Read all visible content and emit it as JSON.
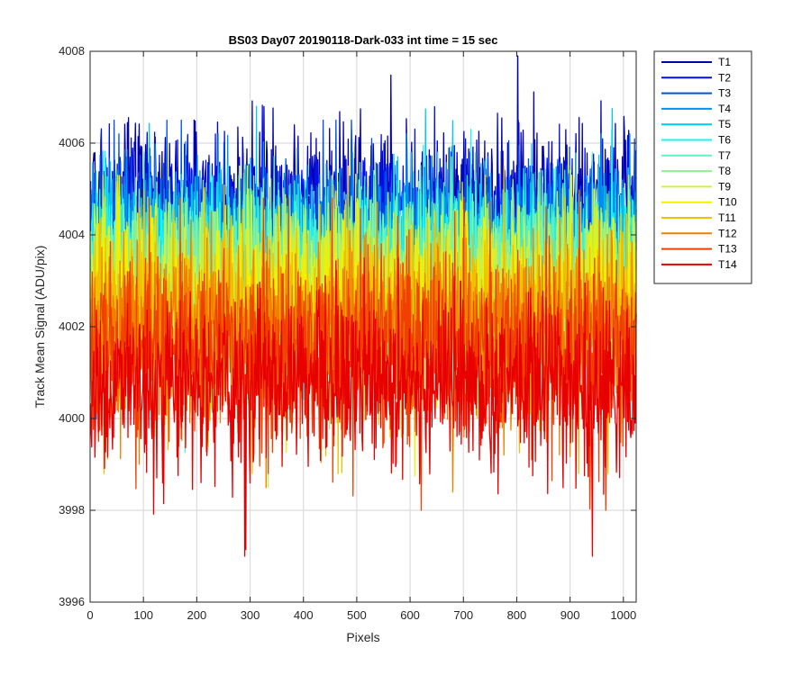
{
  "chart_data": {
    "type": "line",
    "title": "BS03 Day07 20190118-Dark-033 int time = 15 sec",
    "xlabel": "Pixels",
    "ylabel": "Track Mean Signal (ADU/pix)",
    "xlim": [
      0,
      1024
    ],
    "ylim": [
      3996,
      4008
    ],
    "xticks": [
      0,
      100,
      200,
      300,
      400,
      500,
      600,
      700,
      800,
      900,
      1000
    ],
    "yticks": [
      3996,
      3998,
      4000,
      4002,
      4004,
      4006,
      4008
    ],
    "grid": true,
    "legend_position": "outside-top-right",
    "num_points": 1024,
    "x_start": 1,
    "series": [
      {
        "name": "T1",
        "color": "#0000b3",
        "mean": 4004.6,
        "spread": 0.85,
        "min": 4000.0,
        "max": 4007.9
      },
      {
        "name": "T2",
        "color": "#0010e6",
        "mean": 4004.3,
        "spread": 0.8,
        "min": 3999.8,
        "max": 4007.5
      },
      {
        "name": "T3",
        "color": "#0050e8",
        "mean": 4004.0,
        "spread": 0.8,
        "min": 3999.8,
        "max": 4006.5
      },
      {
        "name": "T4",
        "color": "#0090f0",
        "mean": 4003.8,
        "spread": 0.8,
        "min": 3999.6,
        "max": 4006.2
      },
      {
        "name": "T5",
        "color": "#00c8f0",
        "mean": 4003.6,
        "spread": 0.8,
        "min": 3999.5,
        "max": 4006.8
      },
      {
        "name": "T6",
        "color": "#20f0f0",
        "mean": 4003.4,
        "spread": 0.85,
        "min": 3999.4,
        "max": 4006.3
      },
      {
        "name": "T7",
        "color": "#60f0c0",
        "mean": 4003.2,
        "spread": 0.85,
        "min": 3998.8,
        "max": 4005.8
      },
      {
        "name": "T8",
        "color": "#90f090",
        "mean": 4003.0,
        "spread": 0.9,
        "min": 3997.6,
        "max": 4005.7
      },
      {
        "name": "T9",
        "color": "#d0f040",
        "mean": 4002.8,
        "spread": 0.9,
        "min": 3998.5,
        "max": 4005.5
      },
      {
        "name": "T10",
        "color": "#f0f000",
        "mean": 4002.5,
        "spread": 0.95,
        "min": 3998.7,
        "max": 4005.3
      },
      {
        "name": "T11",
        "color": "#f0c000",
        "mean": 4002.2,
        "spread": 0.95,
        "min": 3998.8,
        "max": 4005.5
      },
      {
        "name": "T12",
        "color": "#f08000",
        "mean": 4001.9,
        "spread": 1.0,
        "min": 3998.4,
        "max": 4005.0
      },
      {
        "name": "T13",
        "color": "#f04000",
        "mean": 4001.5,
        "spread": 1.0,
        "min": 3998.0,
        "max": 4004.8
      },
      {
        "name": "T14",
        "color": "#e80000",
        "mean": 4000.7,
        "spread": 0.9,
        "min": 3997.0,
        "max": 4003.5
      }
    ]
  }
}
